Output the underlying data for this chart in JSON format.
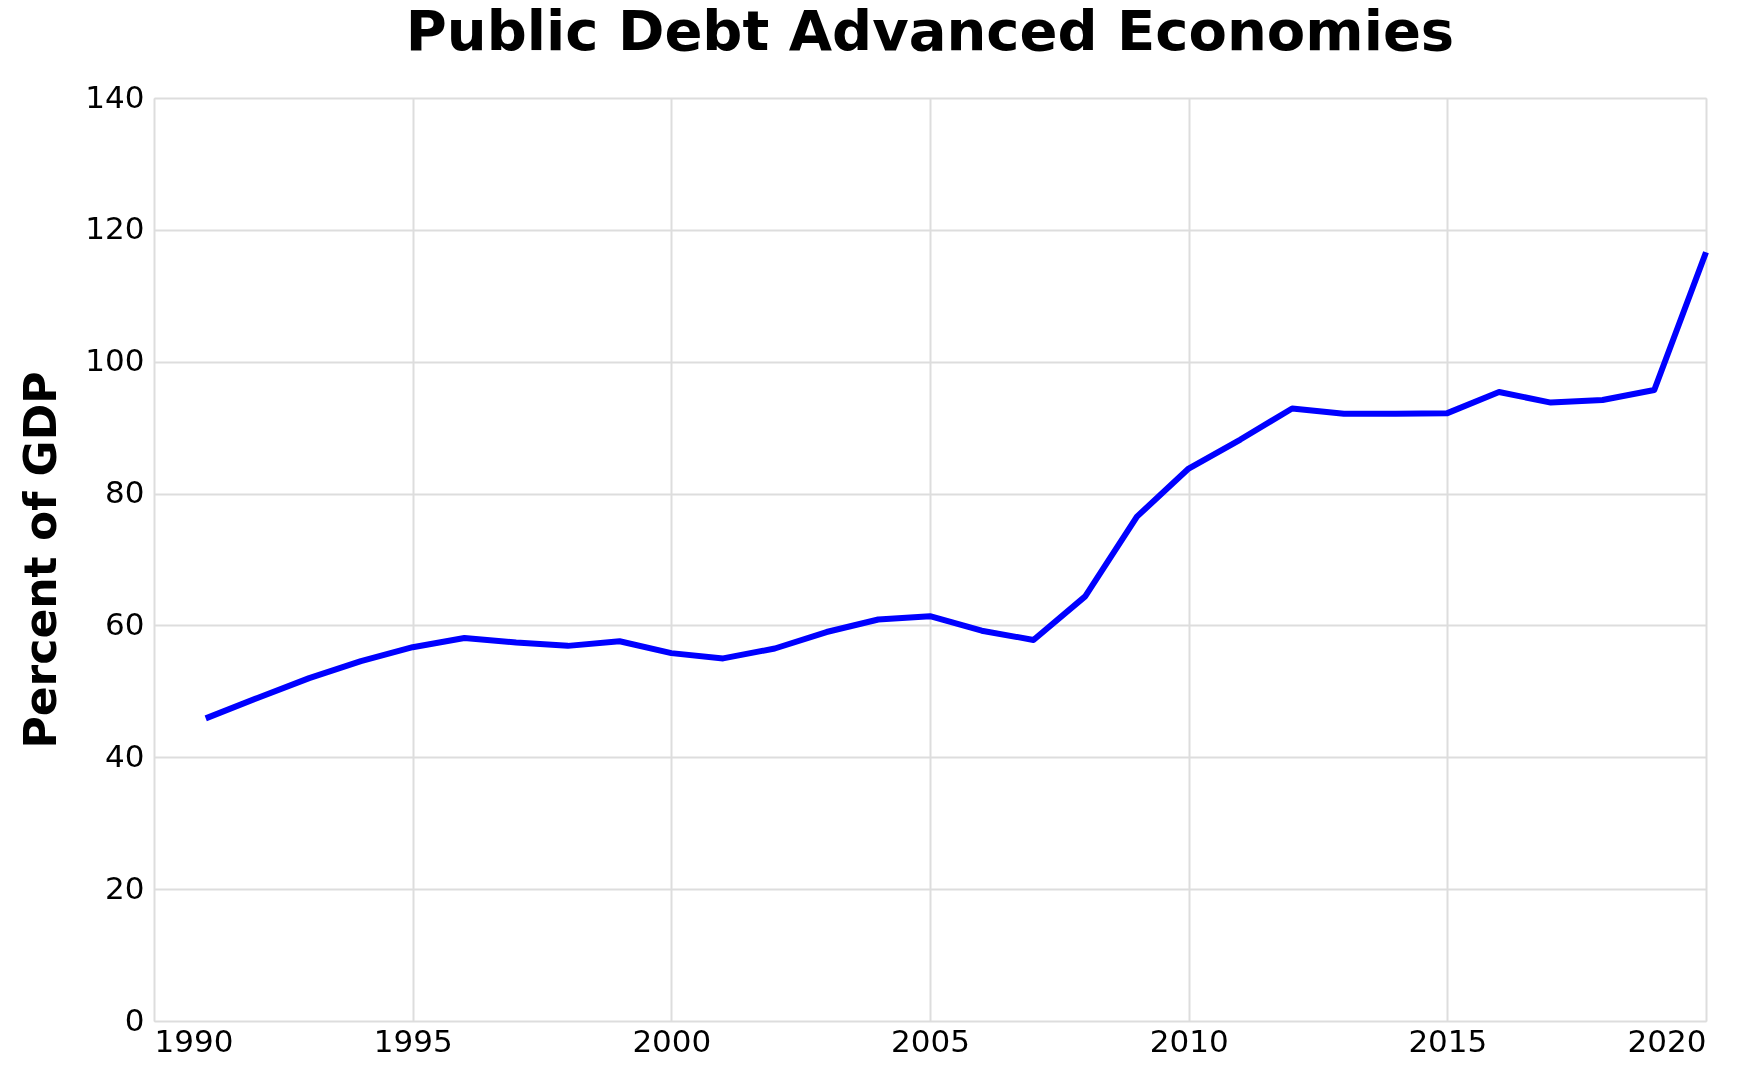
{
  "chart_data": {
    "type": "line",
    "title": "Public Debt Advanced Economies",
    "ylabel": "Percent of GDP",
    "x": [
      1991,
      1992,
      1993,
      1994,
      1995,
      1996,
      1997,
      1998,
      1999,
      2000,
      2001,
      2002,
      2003,
      2004,
      2005,
      2006,
      2007,
      2008,
      2009,
      2010,
      2011,
      2012,
      2013,
      2014,
      2015,
      2016,
      2017,
      2018,
      2019,
      2020
    ],
    "series": [
      {
        "color": "#0000ff",
        "values": [
          45.9,
          49.0,
          52.0,
          54.6,
          56.7,
          58.1,
          57.4,
          56.9,
          57.6,
          55.8,
          55.0,
          56.5,
          59.0,
          60.9,
          61.4,
          59.2,
          57.8,
          64.4,
          76.5,
          83.8,
          88.2,
          92.9,
          92.1,
          92.1,
          92.2,
          95.4,
          93.8,
          94.2,
          95.7,
          116.6
        ]
      }
    ],
    "xlim": [
      1990,
      2020
    ],
    "xticks": [
      1990,
      1995,
      2000,
      2005,
      2010,
      2015,
      2020
    ],
    "ylim": [
      0,
      140
    ],
    "yticks": [
      0,
      20,
      40,
      60,
      80,
      100,
      120,
      140
    ],
    "grid": true,
    "legend": false,
    "marker": "none",
    "line_style": "solid"
  }
}
